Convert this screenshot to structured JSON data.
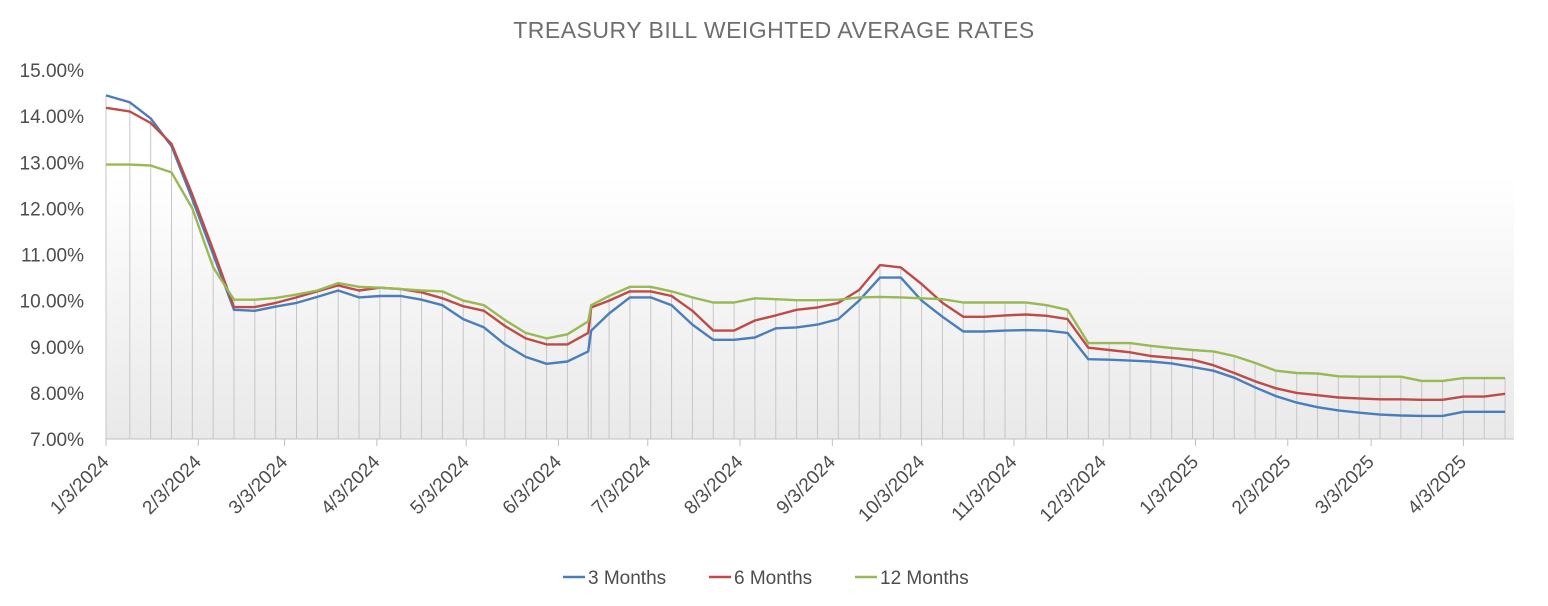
{
  "chart_data": {
    "type": "line",
    "title": "TREASURY BILL WEIGHTED AVERAGE RATES",
    "xlabel": "",
    "ylabel": "",
    "ylim": [
      7.0,
      15.0
    ],
    "yticks": [
      "7.00%",
      "8.00%",
      "9.00%",
      "10.00%",
      "11.00%",
      "12.00%",
      "13.00%",
      "14.00%",
      "15.00%"
    ],
    "xlim": [
      "2024-01-03",
      "2025-04-20"
    ],
    "xticks": [
      {
        "date": "2024-01-03",
        "label": "1/3/2024"
      },
      {
        "date": "2024-02-03",
        "label": "2/3/2024"
      },
      {
        "date": "2024-03-03",
        "label": "3/3/2024"
      },
      {
        "date": "2024-04-03",
        "label": "4/3/2024"
      },
      {
        "date": "2024-05-03",
        "label": "5/3/2024"
      },
      {
        "date": "2024-06-03",
        "label": "6/3/2024"
      },
      {
        "date": "2024-07-03",
        "label": "7/3/2024"
      },
      {
        "date": "2024-08-03",
        "label": "8/3/2024"
      },
      {
        "date": "2024-09-03",
        "label": "9/3/2024"
      },
      {
        "date": "2024-10-03",
        "label": "10/3/2024"
      },
      {
        "date": "2024-11-03",
        "label": "11/3/2024"
      },
      {
        "date": "2024-12-03",
        "label": "12/3/2024"
      },
      {
        "date": "2025-01-03",
        "label": "1/3/2025"
      },
      {
        "date": "2025-02-03",
        "label": "2/3/2025"
      },
      {
        "date": "2025-03-03",
        "label": "3/3/2025"
      },
      {
        "date": "2025-04-03",
        "label": "4/3/2025"
      }
    ],
    "x": [
      "2024-01-03",
      "2024-01-11",
      "2024-01-18",
      "2024-01-25",
      "2024-02-01",
      "2024-02-08",
      "2024-02-15",
      "2024-02-22",
      "2024-02-29",
      "2024-03-07",
      "2024-03-14",
      "2024-03-21",
      "2024-03-28",
      "2024-04-04",
      "2024-04-11",
      "2024-04-18",
      "2024-04-25",
      "2024-05-02",
      "2024-05-09",
      "2024-05-16",
      "2024-05-23",
      "2024-05-30",
      "2024-06-06",
      "2024-06-13",
      "2024-06-14",
      "2024-06-20",
      "2024-06-27",
      "2024-07-04",
      "2024-07-11",
      "2024-07-18",
      "2024-07-25",
      "2024-08-01",
      "2024-08-08",
      "2024-08-15",
      "2024-08-22",
      "2024-08-29",
      "2024-09-05",
      "2024-09-12",
      "2024-09-19",
      "2024-09-26",
      "2024-10-03",
      "2024-10-10",
      "2024-10-17",
      "2024-10-24",
      "2024-10-31",
      "2024-11-07",
      "2024-11-14",
      "2024-11-21",
      "2024-11-28",
      "2024-12-05",
      "2024-12-12",
      "2024-12-19",
      "2024-12-26",
      "2025-01-02",
      "2025-01-09",
      "2025-01-16",
      "2025-01-23",
      "2025-01-30",
      "2025-02-06",
      "2025-02-13",
      "2025-02-20",
      "2025-02-27",
      "2025-03-06",
      "2025-03-13",
      "2025-03-20",
      "2025-03-27",
      "2025-04-03",
      "2025-04-10",
      "2025-04-17"
    ],
    "series": [
      {
        "name": "3 Months",
        "color": "#4a7ebb",
        "values": [
          14.45,
          14.3,
          13.95,
          13.35,
          12.2,
          11.0,
          9.8,
          9.78,
          9.87,
          9.95,
          10.08,
          10.22,
          10.07,
          10.1,
          10.1,
          10.02,
          9.9,
          9.6,
          9.42,
          9.05,
          8.78,
          8.63,
          8.68,
          8.9,
          9.35,
          9.72,
          10.07,
          10.07,
          9.9,
          9.48,
          9.15,
          9.15,
          9.2,
          9.4,
          9.42,
          9.48,
          9.6,
          10.0,
          10.5,
          10.5,
          10.0,
          9.65,
          9.33,
          9.33,
          9.35,
          9.36,
          9.35,
          9.3,
          8.73,
          8.72,
          8.7,
          8.68,
          8.64,
          8.56,
          8.48,
          8.33,
          8.12,
          7.93,
          7.79,
          7.69,
          7.62,
          7.57,
          7.53,
          7.51,
          7.5,
          7.5,
          7.59,
          7.59,
          7.59
        ]
      },
      {
        "name": "6 Months",
        "color": "#be4b48",
        "values": [
          14.18,
          14.1,
          13.85,
          13.4,
          12.3,
          11.1,
          9.86,
          9.86,
          9.95,
          10.07,
          10.2,
          10.33,
          10.22,
          10.28,
          10.25,
          10.18,
          10.05,
          9.88,
          9.78,
          9.45,
          9.18,
          9.05,
          9.05,
          9.3,
          9.85,
          10.0,
          10.2,
          10.2,
          10.1,
          9.78,
          9.35,
          9.35,
          9.57,
          9.68,
          9.8,
          9.85,
          9.95,
          10.23,
          10.77,
          10.72,
          10.36,
          9.95,
          9.65,
          9.65,
          9.68,
          9.7,
          9.67,
          9.6,
          8.98,
          8.93,
          8.88,
          8.8,
          8.76,
          8.72,
          8.6,
          8.43,
          8.25,
          8.1,
          8.0,
          7.95,
          7.9,
          7.88,
          7.86,
          7.86,
          7.85,
          7.85,
          7.92,
          7.92,
          7.98
        ]
      },
      {
        "name": "12 Months",
        "color": "#98b954",
        "values": [
          12.95,
          12.95,
          12.93,
          12.78,
          12.0,
          10.72,
          10.02,
          10.02,
          10.06,
          10.13,
          10.22,
          10.38,
          10.3,
          10.28,
          10.25,
          10.22,
          10.2,
          10.0,
          9.9,
          9.58,
          9.3,
          9.18,
          9.27,
          9.55,
          9.9,
          10.1,
          10.3,
          10.3,
          10.2,
          10.07,
          9.96,
          9.96,
          10.05,
          10.03,
          10.01,
          10.01,
          10.02,
          10.07,
          10.08,
          10.07,
          10.05,
          10.03,
          9.96,
          9.96,
          9.96,
          9.96,
          9.9,
          9.8,
          9.08,
          9.08,
          9.08,
          9.02,
          8.97,
          8.93,
          8.9,
          8.8,
          8.65,
          8.48,
          8.43,
          8.42,
          8.36,
          8.35,
          8.35,
          8.35,
          8.26,
          8.26,
          8.32,
          8.32,
          8.32
        ]
      }
    ],
    "grid": {
      "horizontal": false,
      "vertical_drop_lines": true
    },
    "legend": "bottom"
  }
}
